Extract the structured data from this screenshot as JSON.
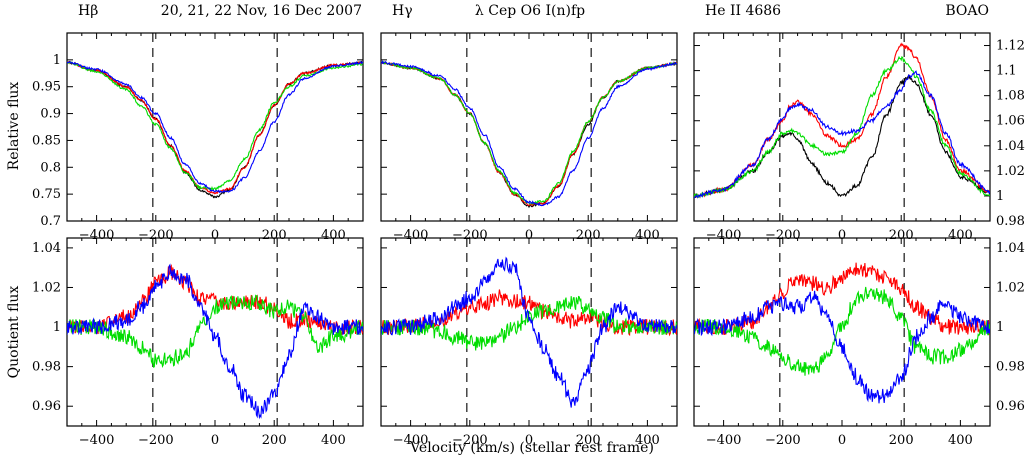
{
  "header": {
    "panel1_line": "Hβ",
    "panel1_dates": "20, 21, 22 Nov, 16 Dec 2007",
    "panel2_line": "Hγ",
    "panel2_star": "λ Cep O6 I(n)fp",
    "panel3_line": "He II 4686",
    "panel3_obs": "BOAO"
  },
  "axes_labels": {
    "ylabel_top": "Relative flux",
    "ylabel_bottom": "Quotient flux",
    "xlabel": "Velocity (km/s)  (stellar rest frame)"
  },
  "chart_data": [
    {
      "type": "line",
      "panel": "top-left",
      "x": [
        -500,
        -400,
        -300,
        -250,
        -200,
        -150,
        -100,
        -50,
        0,
        50,
        100,
        150,
        200,
        250,
        300,
        400,
        500
      ],
      "xlim": [
        -500,
        500
      ],
      "ylim": [
        0.7,
        1.05
      ],
      "vlines": [
        -210,
        210
      ],
      "xticks": [
        -400,
        -200,
        0,
        200,
        400
      ],
      "yticks": [
        0.7,
        0.75,
        0.8,
        0.85,
        0.9,
        0.95,
        1
      ],
      "series": [
        {
          "color": "#000000",
          "values": [
            0.995,
            0.98,
            0.95,
            0.925,
            0.89,
            0.84,
            0.79,
            0.757,
            0.745,
            0.758,
            0.8,
            0.86,
            0.915,
            0.955,
            0.975,
            0.99,
            0.995
          ]
        },
        {
          "color": "#ff0000",
          "values": [
            0.995,
            0.98,
            0.95,
            0.925,
            0.89,
            0.84,
            0.793,
            0.762,
            0.752,
            0.76,
            0.8,
            0.86,
            0.915,
            0.955,
            0.975,
            0.99,
            0.995
          ]
        },
        {
          "color": "#00dd00",
          "values": [
            0.995,
            0.978,
            0.945,
            0.915,
            0.88,
            0.835,
            0.79,
            0.762,
            0.76,
            0.775,
            0.815,
            0.87,
            0.92,
            0.95,
            0.97,
            0.985,
            0.992
          ]
        },
        {
          "color": "#0000ff",
          "values": [
            0.995,
            0.982,
            0.955,
            0.93,
            0.9,
            0.855,
            0.805,
            0.77,
            0.755,
            0.755,
            0.78,
            0.83,
            0.885,
            0.935,
            0.965,
            0.988,
            0.995
          ]
        }
      ]
    },
    {
      "type": "line",
      "panel": "top-center",
      "x": [
        -500,
        -400,
        -300,
        -250,
        -200,
        -150,
        -100,
        -50,
        0,
        50,
        100,
        150,
        200,
        250,
        300,
        400,
        500
      ],
      "xlim": [
        -500,
        500
      ],
      "ylim": [
        0.7,
        1.05
      ],
      "vlines": [
        -210,
        210
      ],
      "xticks": [
        -400,
        -200,
        0,
        200,
        400
      ],
      "yticks": [],
      "series": [
        {
          "color": "#000000",
          "values": [
            0.995,
            0.985,
            0.965,
            0.935,
            0.9,
            0.845,
            0.79,
            0.75,
            0.728,
            0.733,
            0.765,
            0.825,
            0.88,
            0.93,
            0.96,
            0.985,
            0.993
          ]
        },
        {
          "color": "#ff0000",
          "values": [
            0.995,
            0.985,
            0.965,
            0.935,
            0.9,
            0.845,
            0.79,
            0.75,
            0.73,
            0.733,
            0.765,
            0.825,
            0.885,
            0.93,
            0.96,
            0.985,
            0.993
          ]
        },
        {
          "color": "#00dd00",
          "values": [
            0.995,
            0.985,
            0.965,
            0.935,
            0.9,
            0.845,
            0.793,
            0.752,
            0.733,
            0.737,
            0.77,
            0.83,
            0.885,
            0.93,
            0.96,
            0.985,
            0.993
          ]
        },
        {
          "color": "#0000ff",
          "values": [
            0.995,
            0.988,
            0.97,
            0.945,
            0.91,
            0.86,
            0.8,
            0.76,
            0.735,
            0.73,
            0.745,
            0.795,
            0.855,
            0.91,
            0.95,
            0.983,
            0.993
          ]
        }
      ]
    },
    {
      "type": "line",
      "panel": "top-right",
      "x": [
        -500,
        -400,
        -300,
        -250,
        -200,
        -175,
        -150,
        -100,
        -50,
        0,
        50,
        100,
        150,
        200,
        225,
        250,
        300,
        350,
        400,
        500
      ],
      "xlim": [
        -500,
        500
      ],
      "ylim": [
        0.98,
        1.13
      ],
      "vlines": [
        -210,
        210
      ],
      "xticks": [
        -400,
        -200,
        0,
        200,
        400
      ],
      "yticks": [
        0.98,
        1,
        1.02,
        1.04,
        1.06,
        1.08,
        1.1,
        1.12
      ],
      "series": [
        {
          "color": "#000000",
          "values": [
            1.0,
            1.005,
            1.02,
            1.035,
            1.048,
            1.05,
            1.045,
            1.025,
            1.01,
            1.0,
            1.008,
            1.03,
            1.065,
            1.09,
            1.095,
            1.09,
            1.065,
            1.035,
            1.015,
            1.003
          ]
        },
        {
          "color": "#ff0000",
          "values": [
            1.0,
            1.005,
            1.025,
            1.045,
            1.06,
            1.072,
            1.075,
            1.065,
            1.048,
            1.04,
            1.045,
            1.065,
            1.095,
            1.12,
            1.118,
            1.11,
            1.08,
            1.045,
            1.02,
            1.003
          ]
        },
        {
          "color": "#00dd00",
          "values": [
            1.0,
            1.005,
            1.02,
            1.035,
            1.05,
            1.052,
            1.05,
            1.04,
            1.033,
            1.035,
            1.05,
            1.08,
            1.1,
            1.11,
            1.105,
            1.095,
            1.068,
            1.04,
            1.018,
            1.0
          ]
        },
        {
          "color": "#0000ff",
          "values": [
            1.0,
            1.005,
            1.025,
            1.045,
            1.062,
            1.07,
            1.073,
            1.068,
            1.055,
            1.05,
            1.052,
            1.06,
            1.072,
            1.085,
            1.095,
            1.098,
            1.08,
            1.05,
            1.025,
            1.003
          ]
        }
      ]
    },
    {
      "type": "line",
      "panel": "bottom-left",
      "x": [
        -500,
        -400,
        -300,
        -250,
        -200,
        -150,
        -100,
        -50,
        0,
        50,
        100,
        150,
        200,
        250,
        300,
        350,
        400,
        500
      ],
      "xlim": [
        -500,
        500
      ],
      "ylim": [
        0.95,
        1.045
      ],
      "vlines": [
        -210,
        210
      ],
      "xticks": [
        -400,
        -200,
        0,
        200,
        400
      ],
      "yticks": [
        0.96,
        0.98,
        1,
        1.02,
        1.04
      ],
      "series": [
        {
          "color": "#ff0000",
          "values": [
            1.0,
            1.0,
            1.005,
            1.012,
            1.022,
            1.027,
            1.022,
            1.015,
            1.013,
            1.012,
            1.012,
            1.013,
            1.01,
            1.003,
            1.004,
            1.002,
            1.0,
            1.0
          ]
        },
        {
          "color": "#00dd00",
          "values": [
            1.0,
            1.0,
            0.995,
            0.99,
            0.983,
            0.984,
            0.987,
            1.0,
            1.01,
            1.012,
            1.013,
            1.012,
            1.008,
            1.01,
            1.005,
            0.99,
            0.995,
            1.0
          ]
        },
        {
          "color": "#0000ff",
          "values": [
            1.0,
            1.0,
            1.003,
            1.01,
            1.02,
            1.028,
            1.025,
            1.01,
            0.995,
            0.98,
            0.965,
            0.958,
            0.965,
            0.985,
            1.01,
            1.005,
            1.0,
            1.0
          ]
        }
      ]
    },
    {
      "type": "line",
      "panel": "bottom-center",
      "x": [
        -500,
        -400,
        -300,
        -250,
        -200,
        -150,
        -100,
        -50,
        0,
        50,
        100,
        150,
        200,
        250,
        300,
        400,
        500
      ],
      "xlim": [
        -500,
        500
      ],
      "ylim": [
        0.95,
        1.045
      ],
      "vlines": [
        -210,
        210
      ],
      "xticks": [
        -400,
        -200,
        0,
        200,
        400
      ],
      "yticks": [],
      "series": [
        {
          "color": "#ff0000",
          "values": [
            1.0,
            1.0,
            1.003,
            1.006,
            1.01,
            1.012,
            1.015,
            1.013,
            1.012,
            1.008,
            1.005,
            1.003,
            1.005,
            1.002,
            1.0,
            1.0,
            1.0
          ]
        },
        {
          "color": "#00dd00",
          "values": [
            1.0,
            1.0,
            0.998,
            0.995,
            0.992,
            0.992,
            0.995,
            1.0,
            1.005,
            1.008,
            1.01,
            1.012,
            1.01,
            1.005,
            1.0,
            1.0,
            1.0
          ]
        },
        {
          "color": "#0000ff",
          "values": [
            1.0,
            1.0,
            1.005,
            1.01,
            1.015,
            1.022,
            1.032,
            1.03,
            1.005,
            0.99,
            0.975,
            0.962,
            0.98,
            1.0,
            1.01,
            1.0,
            1.0
          ]
        }
      ]
    },
    {
      "type": "line",
      "panel": "bottom-right",
      "x": [
        -500,
        -400,
        -300,
        -250,
        -200,
        -150,
        -100,
        -50,
        0,
        50,
        100,
        150,
        200,
        250,
        300,
        350,
        400,
        500
      ],
      "xlim": [
        -500,
        500
      ],
      "ylim": [
        0.95,
        1.045
      ],
      "vlines": [
        -210,
        210
      ],
      "xticks": [
        -400,
        -200,
        0,
        200,
        400
      ],
      "yticks": [
        0.96,
        0.98,
        1,
        1.02,
        1.04
      ],
      "series": [
        {
          "color": "#ff0000",
          "values": [
            1.0,
            1.0,
            1.003,
            1.01,
            1.018,
            1.025,
            1.022,
            1.02,
            1.025,
            1.03,
            1.028,
            1.025,
            1.02,
            1.01,
            1.005,
            1.0,
            1.0,
            1.0
          ]
        },
        {
          "color": "#00dd00",
          "values": [
            1.0,
            1.0,
            0.995,
            0.99,
            0.985,
            0.98,
            0.978,
            0.985,
            1.0,
            1.015,
            1.018,
            1.015,
            1.005,
            0.99,
            0.985,
            0.985,
            0.988,
            1.0
          ]
        },
        {
          "color": "#0000ff",
          "values": [
            1.0,
            1.0,
            1.005,
            1.01,
            1.012,
            1.01,
            1.015,
            1.005,
            0.99,
            0.975,
            0.965,
            0.965,
            0.975,
            0.995,
            1.005,
            1.012,
            1.005,
            1.0
          ]
        }
      ]
    }
  ]
}
